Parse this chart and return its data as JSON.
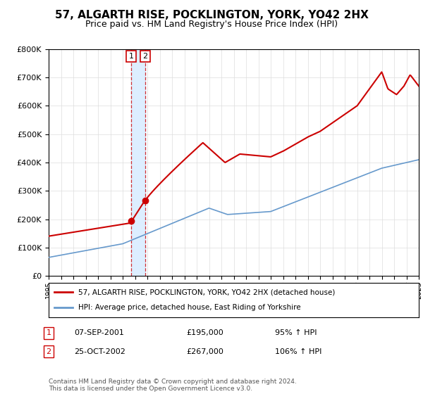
{
  "title": "57, ALGARTH RISE, POCKLINGTON, YORK, YO42 2HX",
  "subtitle": "Price paid vs. HM Land Registry's House Price Index (HPI)",
  "legend_line1": "57, ALGARTH RISE, POCKLINGTON, YORK, YO42 2HX (detached house)",
  "legend_line2": "HPI: Average price, detached house, East Riding of Yorkshire",
  "transaction1_date": "07-SEP-2001",
  "transaction1_price": "£195,000",
  "transaction1_hpi": "95% ↑ HPI",
  "transaction2_date": "25-OCT-2002",
  "transaction2_price": "£267,000",
  "transaction2_hpi": "106% ↑ HPI",
  "footer": "Contains HM Land Registry data © Crown copyright and database right 2024.\nThis data is licensed under the Open Government Licence v3.0.",
  "red_color": "#cc0000",
  "blue_color": "#6699cc",
  "shade_color": "#ddeeff",
  "point1_x": 2001.69,
  "point1_y": 195000,
  "point2_x": 2002.81,
  "point2_y": 267000,
  "ylim": [
    0,
    800000
  ],
  "xlim": [
    1995,
    2025
  ],
  "ylabel_ticks": [
    0,
    100000,
    200000,
    300000,
    400000,
    500000,
    600000,
    700000,
    800000
  ]
}
